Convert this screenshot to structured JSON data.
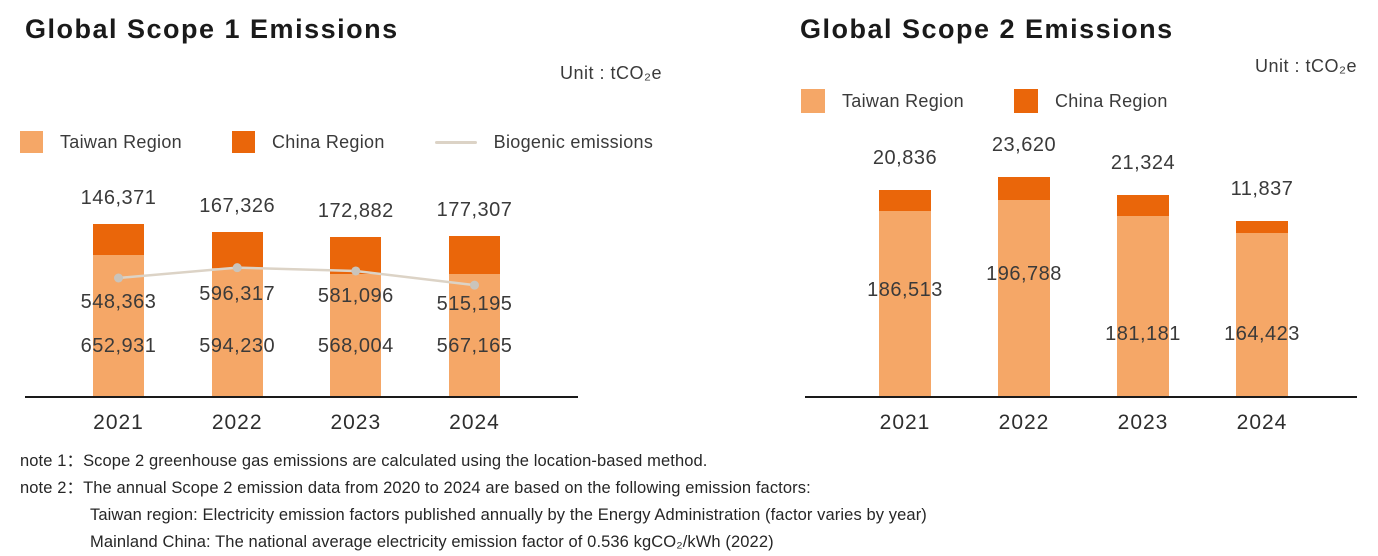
{
  "charts": [
    {
      "title": "Global Scope 1 Emissions",
      "unit_label": "Unit : tCO₂e",
      "legend": [
        {
          "label": "Taiwan Region",
          "marker": "swatch",
          "color": "#F5A767"
        },
        {
          "label": "China Region",
          "marker": "swatch",
          "color": "#EA660A"
        },
        {
          "label": "Biogenic emissions",
          "marker": "line",
          "color": "#DCD3C6"
        }
      ],
      "chart_data": {
        "type": "bar",
        "stacked": true,
        "title": "Global Scope 1 Emissions",
        "unit": "tCO₂e",
        "xlabel": "",
        "ylabel": "",
        "grid": false,
        "legend_position": "top",
        "categories": [
          "2021",
          "2022",
          "2023",
          "2024"
        ],
        "series": [
          {
            "name": "Taiwan Region",
            "color": "#F5A767",
            "values": [
              652931,
              594230,
              568004,
              567165
            ]
          },
          {
            "name": "China Region",
            "color": "#EA660A",
            "values": [
              146371,
              167326,
              172882,
              177307
            ]
          }
        ],
        "line_series": {
          "name": "Biogenic emissions",
          "color": "#DCD3C6",
          "dot_color": "#C9C4BC",
          "values": [
            548363,
            596317,
            581096,
            515195
          ]
        }
      }
    },
    {
      "title": "Global Scope 2 Emissions",
      "unit_label": "Unit : tCO₂e",
      "legend": [
        {
          "label": "Taiwan Region",
          "marker": "swatch",
          "color": "#F5A767"
        },
        {
          "label": "China Region",
          "marker": "swatch",
          "color": "#EA660A"
        }
      ],
      "chart_data": {
        "type": "bar",
        "stacked": true,
        "title": "Global Scope 2 Emissions",
        "unit": "tCO₂e",
        "xlabel": "",
        "ylabel": "",
        "grid": false,
        "legend_position": "top",
        "categories": [
          "2021",
          "2022",
          "2023",
          "2024"
        ],
        "series": [
          {
            "name": "Taiwan Region",
            "color": "#F5A767",
            "values": [
              186513,
              196788,
              181181,
              164423
            ]
          },
          {
            "name": "China Region",
            "color": "#EA660A",
            "values": [
              20836,
              23620,
              21324,
              11837
            ]
          }
        ]
      }
    }
  ],
  "notes": [
    {
      "text": "note 1：Scope 2 greenhouse gas emissions are calculated using the location-based method.",
      "indent": false
    },
    {
      "text": "note 2：The annual Scope 2 emission data from 2020 to 2024 are based on the following emission factors:",
      "indent": false
    },
    {
      "text": "Taiwan region: Electricity emission factors published annually by the Energy Administration (factor varies by year)",
      "indent": true
    },
    {
      "text": "Mainland China: The national average electricity emission factor of 0.536 kgCO₂/kWh (2022)",
      "indent": true
    }
  ],
  "colors": {
    "taiwan_region": "#F5A767",
    "china_region": "#EA660A",
    "biogenic_line": "#DCD3C6",
    "title_text": "#1A1A1A",
    "body_text": "#3A3A3A"
  }
}
